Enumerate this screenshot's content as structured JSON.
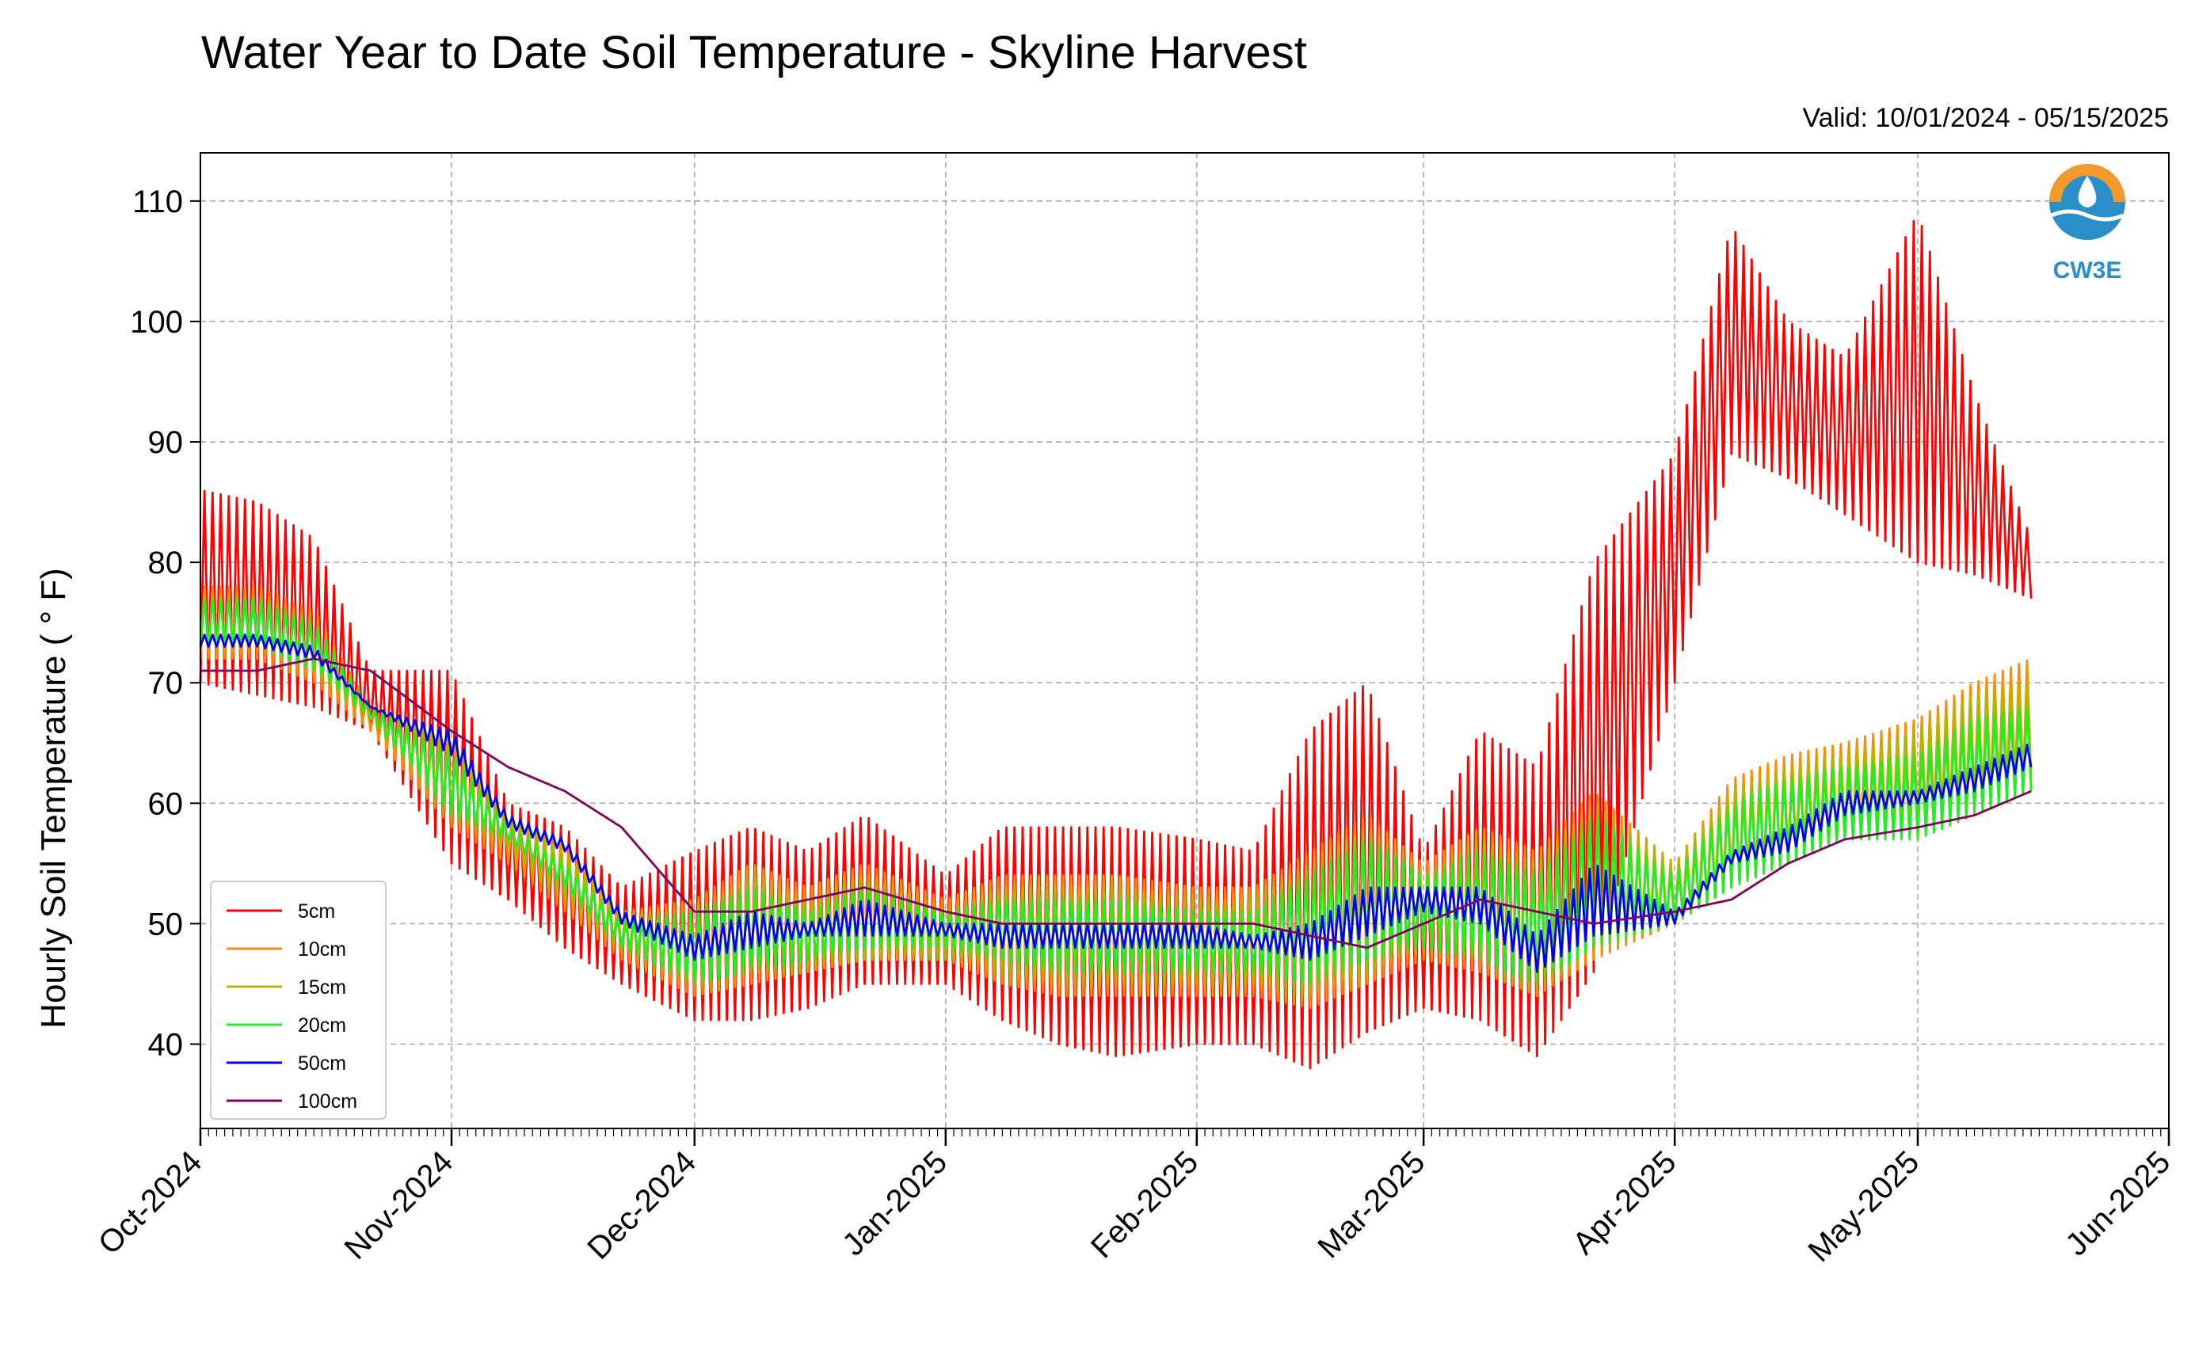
{
  "chart_data": {
    "type": "line",
    "title": "Water Year to Date Soil Temperature - Skyline Harvest",
    "subtitle": "Valid: 10/01/2024 - 05/15/2025",
    "xlabel": "",
    "ylabel": "Hourly Soil Temperature ( ° F)",
    "x_tick_labels": [
      "Oct-2024",
      "Nov-2024",
      "Dec-2024",
      "Jan-2025",
      "Feb-2025",
      "Mar-2025",
      "Apr-2025",
      "May-2025",
      "Jun-2025"
    ],
    "x_tick_dates": [
      "2024-10-01",
      "2024-11-01",
      "2024-12-01",
      "2025-01-01",
      "2025-02-01",
      "2025-03-01",
      "2025-04-01",
      "2025-05-01",
      "2025-06-01"
    ],
    "xlim": [
      "2024-10-01",
      "2025-06-01"
    ],
    "ylim": [
      33,
      114
    ],
    "y_ticks": [
      40,
      50,
      60,
      70,
      80,
      90,
      100,
      110
    ],
    "grid": true,
    "legend_position": "lower-left",
    "x": [
      "2024-10-01",
      "2024-10-08",
      "2024-10-15",
      "2024-10-22",
      "2024-11-01",
      "2024-11-08",
      "2024-11-15",
      "2024-11-22",
      "2024-12-01",
      "2024-12-08",
      "2024-12-15",
      "2024-12-22",
      "2025-01-01",
      "2025-01-08",
      "2025-01-15",
      "2025-01-22",
      "2025-02-01",
      "2025-02-08",
      "2025-02-15",
      "2025-02-22",
      "2025-03-01",
      "2025-03-08",
      "2025-03-15",
      "2025-03-22",
      "2025-04-01",
      "2025-04-08",
      "2025-04-15",
      "2025-04-22",
      "2025-05-01",
      "2025-05-08",
      "2025-05-15"
    ],
    "series": [
      {
        "name": "5cm",
        "color": "#ff0000",
        "min": [
          70,
          69,
          68,
          66,
          55,
          52,
          48,
          45,
          42,
          42,
          43,
          45,
          45,
          42,
          40,
          39,
          40,
          40,
          38,
          41,
          43,
          42,
          39,
          46,
          70,
          89,
          87,
          84,
          80,
          79,
          77
        ],
        "max": [
          86,
          85,
          82,
          71,
          71,
          60,
          58,
          53,
          56,
          58,
          56,
          59,
          54,
          58,
          58,
          58,
          57,
          56,
          66,
          70,
          56,
          66,
          63,
          80,
          89,
          108,
          100,
          97,
          109,
          94,
          82
        ]
      },
      {
        "name": "10cm",
        "color": "#ff8c00",
        "min": [
          72,
          72,
          70,
          66,
          58,
          55,
          51,
          47,
          44,
          45,
          46,
          47,
          47,
          45,
          44,
          44,
          44,
          44,
          43,
          45,
          47,
          46,
          44,
          47,
          50,
          53,
          55,
          57,
          58,
          60,
          62
        ],
        "max": [
          78,
          78,
          76,
          68,
          66,
          59,
          57,
          51,
          52,
          55,
          53,
          55,
          52,
          54,
          54,
          54,
          53,
          53,
          56,
          59,
          55,
          58,
          56,
          61,
          55,
          62,
          64,
          65,
          67,
          70,
          72
        ]
      },
      {
        "name": "15cm",
        "color": "#b5b500",
        "min": [
          73,
          73,
          71,
          67,
          59,
          56,
          52,
          48,
          45,
          46,
          46,
          47,
          47,
          46,
          45,
          45,
          45,
          45,
          44,
          46,
          48,
          47,
          44,
          48,
          50,
          53,
          55,
          57,
          58,
          60,
          62
        ],
        "max": [
          77,
          77,
          75,
          68,
          65,
          59,
          56,
          51,
          51,
          54,
          52,
          54,
          51,
          53,
          53,
          53,
          52,
          52,
          55,
          58,
          54,
          57,
          55,
          60,
          55,
          61,
          63,
          64,
          66,
          69,
          70
        ]
      },
      {
        "name": "20cm",
        "color": "#22ee22",
        "min": [
          73,
          73,
          71,
          67,
          59,
          57,
          53,
          48,
          45,
          46,
          47,
          48,
          48,
          47,
          46,
          46,
          46,
          46,
          45,
          47,
          48,
          47,
          45,
          48,
          50,
          53,
          55,
          57,
          57,
          59,
          61
        ],
        "max": [
          77,
          77,
          75,
          68,
          64,
          58,
          55,
          50,
          51,
          53,
          51,
          53,
          51,
          52,
          52,
          52,
          51,
          51,
          54,
          57,
          54,
          56,
          54,
          59,
          54,
          60,
          62,
          63,
          64,
          67,
          68
        ]
      },
      {
        "name": "50cm",
        "color": "#0000ee",
        "min": [
          73,
          73,
          72,
          68,
          64,
          58,
          56,
          50,
          47,
          48,
          49,
          49,
          49,
          48,
          48,
          48,
          48,
          48,
          47,
          49,
          51,
          50,
          46,
          49,
          50,
          55,
          56,
          59,
          60,
          61,
          63
        ],
        "max": [
          74,
          74,
          73,
          68,
          66,
          59,
          57,
          51,
          49,
          51,
          50,
          52,
          50,
          50,
          50,
          50,
          50,
          49,
          50,
          53,
          53,
          53,
          49,
          55,
          51,
          56,
          58,
          61,
          61,
          63,
          65
        ]
      },
      {
        "name": "100cm",
        "color": "#800060",
        "min": [
          71,
          71,
          72,
          71,
          66,
          63,
          61,
          58,
          51,
          51,
          52,
          53,
          51,
          50,
          50,
          50,
          50,
          50,
          49,
          48,
          50,
          52,
          51,
          50,
          51,
          52,
          55,
          57,
          58,
          59,
          61
        ],
        "max": [
          71,
          71,
          72,
          71,
          66,
          63,
          61,
          58,
          51,
          51,
          52,
          53,
          51,
          50,
          50,
          50,
          50,
          50,
          49,
          48,
          50,
          52,
          51,
          50,
          51,
          52,
          55,
          57,
          58,
          59,
          61
        ]
      }
    ]
  },
  "logo": {
    "text": "CW3E",
    "primary_color": "#2a8fc7",
    "accent_color": "#f29b2c"
  }
}
